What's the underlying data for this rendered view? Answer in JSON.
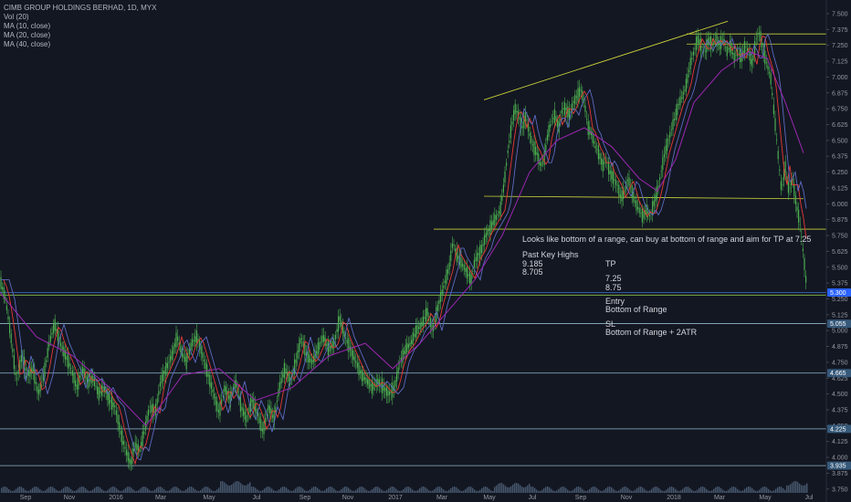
{
  "header": {
    "symbol_line": "CIMB GROUP HOLDINGS BERHAD, 1D, MYX",
    "indicators": [
      "Vol (20)",
      "MA (10, close)",
      "MA (20, close)",
      "MA (40, close)"
    ]
  },
  "notes": {
    "main": "Looks like bottom of a range, can buy at bottom of range and aim for TP at 7.25",
    "past_key_highs_title": "Past Key Highs",
    "past_key_highs": [
      "9.185",
      "8.705"
    ],
    "tp_title": "TP",
    "tp_values": [
      "7.25",
      "8.75"
    ],
    "entry_title": "Entry",
    "entry_value": "Bottom of Range",
    "sl_title": "SL",
    "sl_value": "Bottom of Range + 2ATR"
  },
  "colors": {
    "background": "#131722",
    "candles": "#4caf50",
    "ma10": "#e53935",
    "ma20": "#5c6bc0",
    "ma40": "#9c27b0",
    "trendline": "#c8d13a",
    "hline": "#8fb8cc",
    "volume": "#5a6f8a",
    "badge": "#2e6fc7"
  },
  "chart_data": {
    "type": "candlestick",
    "y_axis_ticks": [
      "7.500",
      "7.375",
      "7.250",
      "7.125",
      "7.000",
      "6.875",
      "6.750",
      "6.625",
      "6.500",
      "6.375",
      "6.250",
      "6.125",
      "6.000",
      "5.875",
      "5.750",
      "5.625",
      "5.500",
      "5.375",
      "5.250",
      "5.125",
      "5.000",
      "4.875",
      "4.750",
      "4.625",
      "4.500",
      "4.375",
      "4.250",
      "4.125",
      "4.000",
      "3.875",
      "3.750"
    ],
    "ylim": [
      3.72,
      7.55
    ],
    "x_axis_ticks": [
      "Sep",
      "Nov",
      "2016",
      "Mar",
      "May",
      "Jul",
      "Sep",
      "Nov",
      "2017",
      "Mar",
      "May",
      "Jul",
      "Sep",
      "Nov",
      "2018",
      "Mar",
      "May",
      "Jul"
    ],
    "price_path": [
      [
        0,
        5.4
      ],
      [
        6,
        5.25
      ],
      [
        12,
        4.95
      ],
      [
        18,
        4.6
      ],
      [
        24,
        4.8
      ],
      [
        30,
        4.65
      ],
      [
        36,
        4.7
      ],
      [
        42,
        4.5
      ],
      [
        48,
        4.65
      ],
      [
        54,
        4.9
      ],
      [
        60,
        5.05
      ],
      [
        66,
        4.9
      ],
      [
        72,
        4.8
      ],
      [
        78,
        4.7
      ],
      [
        84,
        4.55
      ],
      [
        90,
        4.7
      ],
      [
        96,
        4.6
      ],
      [
        102,
        4.62
      ],
      [
        108,
        4.5
      ],
      [
        114,
        4.55
      ],
      [
        120,
        4.45
      ],
      [
        126,
        4.4
      ],
      [
        132,
        4.2
      ],
      [
        138,
        4.05
      ],
      [
        143,
        3.95
      ],
      [
        148,
        4.1
      ],
      [
        153,
        4.05
      ],
      [
        158,
        4.2
      ],
      [
        164,
        4.4
      ],
      [
        170,
        4.35
      ],
      [
        176,
        4.6
      ],
      [
        182,
        4.7
      ],
      [
        188,
        4.8
      ],
      [
        194,
        4.95
      ],
      [
        198,
        4.85
      ],
      [
        204,
        4.75
      ],
      [
        210,
        4.9
      ],
      [
        216,
        4.95
      ],
      [
        222,
        4.8
      ],
      [
        228,
        4.65
      ],
      [
        234,
        4.5
      ],
      [
        240,
        4.35
      ],
      [
        246,
        4.55
      ],
      [
        252,
        4.45
      ],
      [
        258,
        4.6
      ],
      [
        264,
        4.4
      ],
      [
        270,
        4.3
      ],
      [
        276,
        4.45
      ],
      [
        282,
        4.35
      ],
      [
        288,
        4.2
      ],
      [
        294,
        4.4
      ],
      [
        300,
        4.3
      ],
      [
        306,
        4.55
      ],
      [
        312,
        4.7
      ],
      [
        318,
        4.6
      ],
      [
        324,
        4.75
      ],
      [
        330,
        4.95
      ],
      [
        336,
        4.8
      ],
      [
        342,
        4.75
      ],
      [
        348,
        4.85
      ],
      [
        354,
        4.95
      ],
      [
        360,
        4.85
      ],
      [
        366,
        4.9
      ],
      [
        372,
        5.1
      ],
      [
        378,
        4.95
      ],
      [
        384,
        4.85
      ],
      [
        390,
        4.75
      ],
      [
        396,
        4.65
      ],
      [
        402,
        4.6
      ],
      [
        408,
        4.55
      ],
      [
        414,
        4.6
      ],
      [
        420,
        4.55
      ],
      [
        426,
        4.5
      ],
      [
        432,
        4.55
      ],
      [
        438,
        4.75
      ],
      [
        444,
        4.85
      ],
      [
        450,
        4.9
      ],
      [
        456,
        5.0
      ],
      [
        462,
        5.05
      ],
      [
        468,
        5.15
      ],
      [
        474,
        5.0
      ],
      [
        480,
        5.2
      ],
      [
        486,
        5.35
      ],
      [
        492,
        5.5
      ],
      [
        496,
        5.7
      ],
      [
        500,
        5.6
      ],
      [
        504,
        5.55
      ],
      [
        508,
        5.5
      ],
      [
        512,
        5.45
      ],
      [
        516,
        5.4
      ],
      [
        520,
        5.55
      ],
      [
        524,
        5.6
      ],
      [
        528,
        5.65
      ],
      [
        532,
        5.75
      ],
      [
        536,
        5.8
      ],
      [
        540,
        5.85
      ],
      [
        544,
        5.9
      ],
      [
        548,
        5.95
      ],
      [
        552,
        6.15
      ],
      [
        556,
        6.4
      ],
      [
        560,
        6.6
      ],
      [
        564,
        6.75
      ],
      [
        568,
        6.7
      ],
      [
        572,
        6.6
      ],
      [
        576,
        6.7
      ],
      [
        580,
        6.55
      ],
      [
        584,
        6.45
      ],
      [
        588,
        6.4
      ],
      [
        592,
        6.3
      ],
      [
        596,
        6.35
      ],
      [
        600,
        6.55
      ],
      [
        604,
        6.65
      ],
      [
        608,
        6.7
      ],
      [
        612,
        6.6
      ],
      [
        616,
        6.75
      ],
      [
        620,
        6.75
      ],
      [
        624,
        6.7
      ],
      [
        628,
        6.8
      ],
      [
        632,
        6.85
      ],
      [
        636,
        6.9
      ],
      [
        640,
        6.8
      ],
      [
        644,
        6.6
      ],
      [
        648,
        6.55
      ],
      [
        652,
        6.45
      ],
      [
        656,
        6.4
      ],
      [
        660,
        6.3
      ],
      [
        664,
        6.35
      ],
      [
        668,
        6.25
      ],
      [
        672,
        6.2
      ],
      [
        676,
        6.15
      ],
      [
        680,
        6.05
      ],
      [
        684,
        6.1
      ],
      [
        688,
        6.2
      ],
      [
        692,
        6.1
      ],
      [
        696,
        6.0
      ],
      [
        700,
        5.95
      ],
      [
        704,
        5.9
      ],
      [
        708,
        5.95
      ],
      [
        712,
        5.9
      ],
      [
        716,
        6.0
      ],
      [
        720,
        6.1
      ],
      [
        724,
        6.25
      ],
      [
        728,
        6.4
      ],
      [
        732,
        6.5
      ],
      [
        736,
        6.6
      ],
      [
        740,
        6.7
      ],
      [
        744,
        6.8
      ],
      [
        748,
        6.85
      ],
      [
        752,
        6.95
      ],
      [
        756,
        7.1
      ],
      [
        760,
        7.2
      ],
      [
        764,
        7.3
      ],
      [
        768,
        7.25
      ],
      [
        772,
        7.2
      ],
      [
        776,
        7.3
      ],
      [
        780,
        7.25
      ],
      [
        784,
        7.3
      ],
      [
        788,
        7.25
      ],
      [
        792,
        7.3
      ],
      [
        796,
        7.2
      ],
      [
        800,
        7.25
      ],
      [
        804,
        7.15
      ],
      [
        808,
        7.2
      ],
      [
        812,
        7.15
      ],
      [
        816,
        7.25
      ],
      [
        820,
        7.2
      ],
      [
        824,
        7.1
      ],
      [
        828,
        7.3
      ],
      [
        832,
        7.35
      ],
      [
        836,
        7.2
      ],
      [
        840,
        7.1
      ],
      [
        844,
        7.0
      ],
      [
        848,
        6.7
      ],
      [
        852,
        6.4
      ],
      [
        856,
        6.1
      ],
      [
        860,
        6.3
      ],
      [
        864,
        6.1
      ],
      [
        868,
        6.2
      ],
      [
        872,
        6.0
      ],
      [
        876,
        5.85
      ],
      [
        880,
        5.6
      ],
      [
        884,
        5.3
      ]
    ],
    "ma40_path": [
      [
        0,
        5.3
      ],
      [
        40,
        4.95
      ],
      [
        80,
        4.8
      ],
      [
        120,
        4.55
      ],
      [
        160,
        4.25
      ],
      [
        200,
        4.65
      ],
      [
        240,
        4.7
      ],
      [
        280,
        4.45
      ],
      [
        320,
        4.55
      ],
      [
        360,
        4.8
      ],
      [
        400,
        4.9
      ],
      [
        430,
        4.7
      ],
      [
        460,
        4.9
      ],
      [
        490,
        5.15
      ],
      [
        520,
        5.4
      ],
      [
        550,
        5.75
      ],
      [
        580,
        6.25
      ],
      [
        610,
        6.5
      ],
      [
        640,
        6.6
      ],
      [
        670,
        6.45
      ],
      [
        700,
        6.2
      ],
      [
        720,
        6.1
      ],
      [
        740,
        6.35
      ],
      [
        760,
        6.8
      ],
      [
        790,
        7.05
      ],
      [
        820,
        7.2
      ],
      [
        840,
        7.15
      ],
      [
        860,
        6.8
      ],
      [
        880,
        6.4
      ]
    ],
    "volume_note": "Vol (20) histogram along bottom"
  },
  "price_badges": [
    {
      "label": "5.300",
      "value": 5.3,
      "type": "highlight"
    },
    {
      "label": "5.055",
      "value": 5.055,
      "type": "badge"
    },
    {
      "label": "4.665",
      "value": 4.665,
      "type": "badge"
    },
    {
      "label": "4.225",
      "value": 4.225,
      "type": "badge"
    },
    {
      "label": "3.935",
      "value": 3.935,
      "type": "badge"
    }
  ]
}
